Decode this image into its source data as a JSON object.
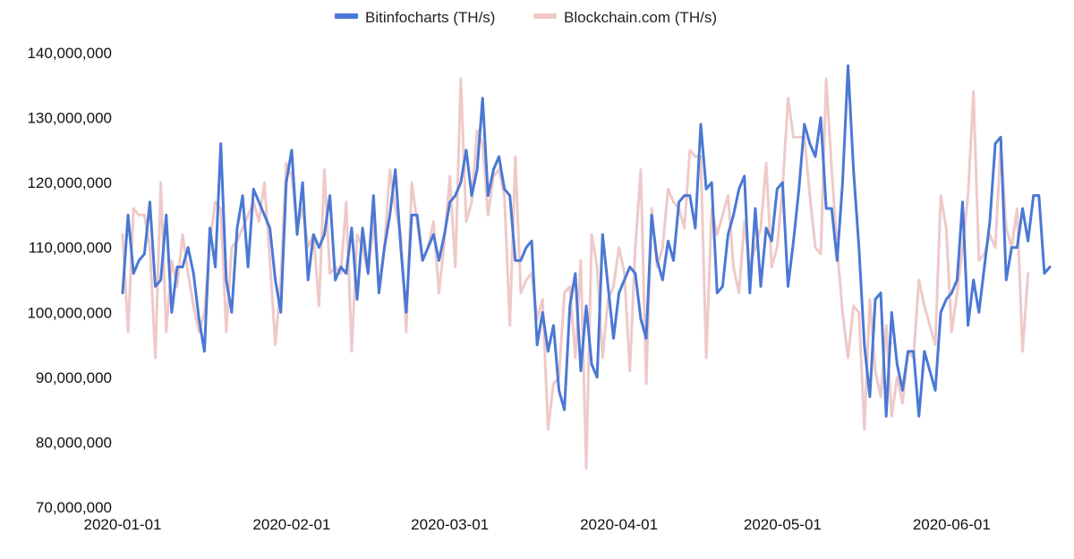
{
  "chart_data": {
    "type": "line",
    "title": "",
    "xlabel": "",
    "ylabel": "",
    "x_start": "2020-01-01",
    "x_ticks": [
      "2020-01-01",
      "2020-02-01",
      "2020-03-01",
      "2020-04-01",
      "2020-05-01",
      "2020-06-01"
    ],
    "ylim": [
      70000000,
      140000000
    ],
    "y_ticks": [
      70000000,
      80000000,
      90000000,
      100000000,
      110000000,
      120000000,
      130000000,
      140000000
    ],
    "y_tick_labels": [
      "70,000,000",
      "80,000,000",
      "90,000,000",
      "100,000,000",
      "110,000,000",
      "120,000,000",
      "130,000,000",
      "140,000,000"
    ],
    "grid": false,
    "legend_position": "top-center",
    "series": [
      {
        "name": "Bitinfocharts (TH/s)",
        "color": "#4a78d4",
        "values": [
          103000000,
          115000000,
          106000000,
          108000000,
          109000000,
          117000000,
          104000000,
          105000000,
          115000000,
          100000000,
          107000000,
          107000000,
          110000000,
          106000000,
          99000000,
          94000000,
          113000000,
          107000000,
          126000000,
          105000000,
          100000000,
          113000000,
          118000000,
          107000000,
          119000000,
          117000000,
          115000000,
          113000000,
          105000000,
          100000000,
          120000000,
          125000000,
          112000000,
          120000000,
          105000000,
          112000000,
          110000000,
          112000000,
          118000000,
          105000000,
          107000000,
          106000000,
          113000000,
          102000000,
          113000000,
          106000000,
          118000000,
          103000000,
          110000000,
          115000000,
          122000000,
          110000000,
          100000000,
          115000000,
          115000000,
          108000000,
          110000000,
          112000000,
          108000000,
          112000000,
          117000000,
          118000000,
          120000000,
          125000000,
          118000000,
          122000000,
          133000000,
          118000000,
          122000000,
          124000000,
          119000000,
          118000000,
          108000000,
          108000000,
          110000000,
          111000000,
          95000000,
          100000000,
          94000000,
          98000000,
          88000000,
          85000000,
          101000000,
          106000000,
          91000000,
          101000000,
          92000000,
          90000000,
          112000000,
          104000000,
          96000000,
          103000000,
          105000000,
          107000000,
          106000000,
          99000000,
          96000000,
          115000000,
          108000000,
          105000000,
          111000000,
          108000000,
          117000000,
          118000000,
          118000000,
          113000000,
          129000000,
          119000000,
          120000000,
          103000000,
          104000000,
          112000000,
          115000000,
          119000000,
          121000000,
          103000000,
          116000000,
          104000000,
          113000000,
          111000000,
          119000000,
          120000000,
          104000000,
          111000000,
          119000000,
          129000000,
          126000000,
          124000000,
          130000000,
          116000000,
          116000000,
          108000000,
          120000000,
          138000000,
          122000000,
          110000000,
          95000000,
          87000000,
          102000000,
          103000000,
          84000000,
          100000000,
          92000000,
          88000000,
          94000000,
          94000000,
          84000000,
          94000000,
          91000000,
          88000000,
          100000000,
          102000000,
          103000000,
          105000000,
          117000000,
          98000000,
          105000000,
          100000000,
          107000000,
          114000000,
          126000000,
          127000000,
          105000000,
          110000000,
          110000000,
          116000000,
          111000000,
          118000000,
          118000000,
          106000000,
          107000000
        ]
      },
      {
        "name": "Blockchain.com (TH/s)",
        "color": "#efc9c9",
        "values": [
          112000000,
          97000000,
          116000000,
          115000000,
          115000000,
          110000000,
          93000000,
          120000000,
          97000000,
          108000000,
          104000000,
          112000000,
          106000000,
          101000000,
          97000000,
          100000000,
          111000000,
          117000000,
          116000000,
          97000000,
          110000000,
          111000000,
          113000000,
          115000000,
          117000000,
          114000000,
          120000000,
          108000000,
          95000000,
          105000000,
          123000000,
          121000000,
          113000000,
          116000000,
          110000000,
          112000000,
          101000000,
          122000000,
          106000000,
          107000000,
          106000000,
          117000000,
          94000000,
          112000000,
          110000000,
          106000000,
          114000000,
          104000000,
          110000000,
          122000000,
          116000000,
          112000000,
          97000000,
          120000000,
          114000000,
          108000000,
          110000000,
          114000000,
          103000000,
          111000000,
          121000000,
          107000000,
          136000000,
          114000000,
          117000000,
          128000000,
          126000000,
          115000000,
          121000000,
          122000000,
          118000000,
          98000000,
          124000000,
          103000000,
          105000000,
          106000000,
          99000000,
          102000000,
          82000000,
          89000000,
          90000000,
          103000000,
          104000000,
          93000000,
          108000000,
          76000000,
          112000000,
          107000000,
          93000000,
          102000000,
          104000000,
          110000000,
          106000000,
          91000000,
          110000000,
          122000000,
          89000000,
          116000000,
          107000000,
          110000000,
          119000000,
          117000000,
          116000000,
          113000000,
          125000000,
          124000000,
          124000000,
          93000000,
          116000000,
          112000000,
          115000000,
          118000000,
          107000000,
          103000000,
          114000000,
          107000000,
          110000000,
          113000000,
          123000000,
          107000000,
          110000000,
          119000000,
          133000000,
          127000000,
          127000000,
          127000000,
          118000000,
          110000000,
          109000000,
          136000000,
          122000000,
          110000000,
          100000000,
          93000000,
          101000000,
          100000000,
          82000000,
          102000000,
          91000000,
          87000000,
          98000000,
          84000000,
          90000000,
          86000000,
          94000000,
          93000000,
          105000000,
          101000000,
          98000000,
          95000000,
          118000000,
          113000000,
          97000000,
          103000000,
          110000000,
          118000000,
          134000000,
          108000000,
          109000000,
          112000000,
          110000000,
          126000000,
          113000000,
          110000000,
          116000000,
          94000000,
          106000000
        ]
      }
    ]
  }
}
